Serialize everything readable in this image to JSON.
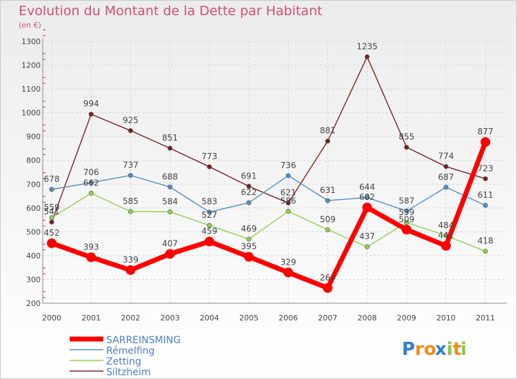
{
  "chart_data": {
    "type": "line",
    "title": "Evolution du Montant de la Dette par Habitant",
    "subtitle": "(en €)",
    "x": [
      "2000",
      "2001",
      "2002",
      "2003",
      "2004",
      "2005",
      "2006",
      "2007",
      "2008",
      "2009",
      "2010",
      "2011"
    ],
    "ylim": [
      200,
      1300
    ],
    "yticks": [
      "200",
      "300",
      "400",
      "500",
      "600",
      "700",
      "800",
      "900",
      "1000",
      "1100",
      "1200",
      "1300"
    ],
    "grid": true,
    "legend_position": "bottom-left",
    "series": [
      {
        "name": "SARREINSMING",
        "color": "#ff0000",
        "values": [
          452,
          393,
          339,
          407,
          459,
          395,
          329,
          264,
          602,
          509,
          441,
          877
        ],
        "labels": [
          "452",
          "393",
          "339",
          "407",
          "459",
          "395",
          "329",
          "264",
          "602",
          "509",
          "441",
          "877"
        ]
      },
      {
        "name": "Rémelfing",
        "color": "#4d8fc8",
        "values": [
          678,
          706,
          737,
          688,
          583,
          622,
          736,
          631,
          644,
          587,
          687,
          611
        ],
        "labels": [
          "678",
          "706",
          "737",
          "688",
          "583",
          "622",
          "736",
          "631",
          "644",
          "587",
          "687",
          "611"
        ]
      },
      {
        "name": "Zetting",
        "color": "#8fd24b",
        "values": [
          559,
          662,
          585,
          584,
          527,
          469,
          586,
          509,
          437,
          539,
          484,
          418
        ],
        "labels": [
          "559",
          "662",
          "585",
          "584",
          "527",
          "469",
          "586",
          "509",
          "437",
          "539",
          "484",
          "418"
        ]
      },
      {
        "name": "Siltzheim",
        "color": "#7a2020",
        "values": [
          541,
          994,
          925,
          851,
          773,
          691,
          621,
          881,
          1235,
          855,
          774,
          723
        ],
        "labels": [
          "541",
          "994",
          "925",
          "851",
          "773",
          "691",
          "621",
          "881",
          "1235",
          "855",
          "774",
          "723"
        ]
      }
    ]
  },
  "logo": {
    "text": "Proxiti",
    "letters": [
      "P",
      "r",
      "o",
      "x",
      "i",
      "t",
      "i"
    ],
    "colors": [
      "#2e7fd0",
      "#f08a1c",
      "#f08a1c",
      "#2e7fd0",
      "#8cc63f",
      "#f08a1c",
      "#8cc63f"
    ]
  }
}
